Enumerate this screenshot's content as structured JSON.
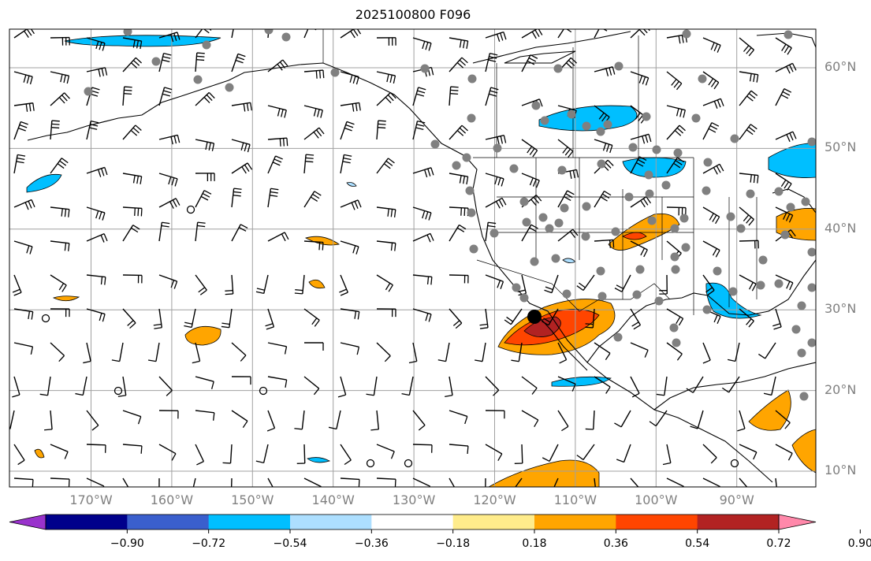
{
  "title": "2025100800 F096",
  "lat_labels": [
    {
      "text": "60°N",
      "lat": 60
    },
    {
      "text": "50°N",
      "lat": 50
    },
    {
      "text": "40°N",
      "lat": 40
    },
    {
      "text": "30°N",
      "lat": 30
    },
    {
      "text": "20°N",
      "lat": 20
    },
    {
      "text": "10°N",
      "lat": 10
    }
  ],
  "lon_labels": [
    {
      "text": "170°W",
      "lon": -170
    },
    {
      "text": "160°W",
      "lon": -160
    },
    {
      "text": "150°W",
      "lon": -150
    },
    {
      "text": "140°W",
      "lon": -140
    },
    {
      "text": "130°W",
      "lon": -130
    },
    {
      "text": "120°W",
      "lon": -120
    },
    {
      "text": "110°W",
      "lon": -110
    },
    {
      "text": "100°W",
      "lon": -100
    },
    {
      "text": "90°W",
      "lon": -90
    }
  ],
  "colorbar": {
    "colors": [
      "#9932CC",
      "#00008B",
      "#3A5FCD",
      "#00BFFF",
      "#ADDFFF",
      "#FFFFFF",
      "#FFEC8B",
      "#FFA500",
      "#FF4500",
      "#B22222",
      "#FF88AA"
    ],
    "under_color": "#9932CC",
    "over_color": "#FF88AA",
    "tick_labels": [
      "−0.90",
      "−0.72",
      "−0.54",
      "−0.36",
      "−0.18",
      "0.18",
      "0.36",
      "0.54",
      "0.72",
      "0.90"
    ]
  },
  "colors": {
    "coast": "#000000",
    "grid": "#a0a0a0",
    "station": "#808080",
    "barb": "#000000",
    "label": "#808080"
  }
}
